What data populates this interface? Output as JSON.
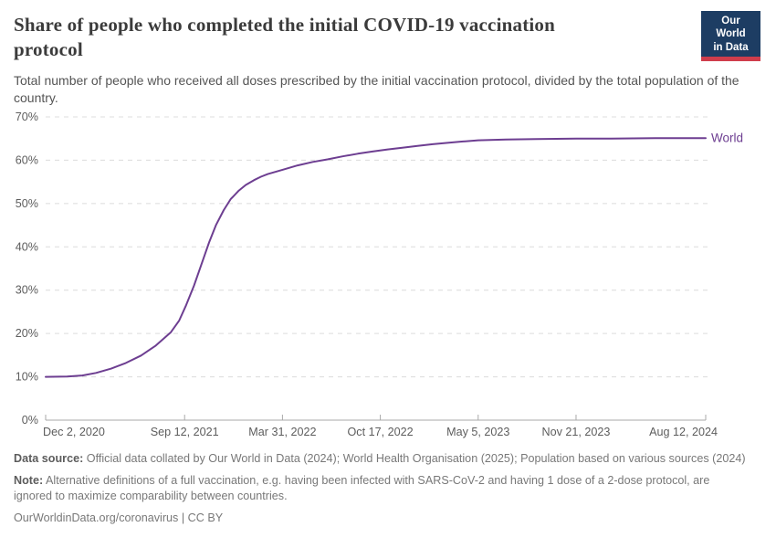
{
  "header": {
    "title": "Share of people who completed the initial COVID-19 vaccination protocol",
    "subtitle": "Total number of people who received all doses prescribed by the initial vaccination protocol, divided by the total population of the country.",
    "logo": {
      "line1": "Our World",
      "line2": "in Data",
      "bg_color": "#1d3d63",
      "accent_color": "#cf3d4c"
    }
  },
  "chart_data": {
    "type": "line",
    "title": "Share of people who completed the initial COVID-19 vaccination protocol",
    "xlabel": "",
    "ylabel": "",
    "ylim": [
      0,
      70
    ],
    "grid": "horizontal-dashed",
    "legend_position": "end-of-line-label",
    "x_range": [
      "2020-12-02",
      "2024-08-12"
    ],
    "yticks": [
      {
        "value": 0,
        "label": "0%"
      },
      {
        "value": 10,
        "label": "10%"
      },
      {
        "value": 20,
        "label": "20%"
      },
      {
        "value": 30,
        "label": "30%"
      },
      {
        "value": 40,
        "label": "40%"
      },
      {
        "value": 50,
        "label": "50%"
      },
      {
        "value": 60,
        "label": "60%"
      },
      {
        "value": 70,
        "label": "70%"
      }
    ],
    "xticks": [
      {
        "date": "2020-12-02",
        "label": "Dec 2, 2020"
      },
      {
        "date": "2021-09-12",
        "label": "Sep 12, 2021"
      },
      {
        "date": "2022-03-31",
        "label": "Mar 31, 2022"
      },
      {
        "date": "2022-10-17",
        "label": "Oct 17, 2022"
      },
      {
        "date": "2023-05-05",
        "label": "May 5, 2023"
      },
      {
        "date": "2023-11-21",
        "label": "Nov 21, 2023"
      },
      {
        "date": "2024-08-12",
        "label": "Aug 12, 2024"
      }
    ],
    "line_color": "#6d3e91",
    "series": [
      {
        "name": "World",
        "color": "#6d3e91",
        "points": [
          [
            "2020-12-02",
            10.0
          ],
          [
            "2021-01-15",
            10.05
          ],
          [
            "2021-02-15",
            10.3
          ],
          [
            "2021-03-15",
            10.9
          ],
          [
            "2021-04-15",
            11.9
          ],
          [
            "2021-05-15",
            13.2
          ],
          [
            "2021-06-15",
            14.9
          ],
          [
            "2021-07-15",
            17.2
          ],
          [
            "2021-08-15",
            20.3
          ],
          [
            "2021-09-01",
            23.0
          ],
          [
            "2021-09-15",
            26.5
          ],
          [
            "2021-10-01",
            31.0
          ],
          [
            "2021-10-15",
            35.5
          ],
          [
            "2021-11-01",
            41.0
          ],
          [
            "2021-11-15",
            45.0
          ],
          [
            "2021-12-01",
            48.5
          ],
          [
            "2021-12-15",
            51.0
          ],
          [
            "2022-01-01",
            53.0
          ],
          [
            "2022-01-15",
            54.3
          ],
          [
            "2022-02-01",
            55.4
          ],
          [
            "2022-02-15",
            56.2
          ],
          [
            "2022-03-01",
            56.8
          ],
          [
            "2022-03-31",
            57.8
          ],
          [
            "2022-05-01",
            58.8
          ],
          [
            "2022-06-01",
            59.6
          ],
          [
            "2022-07-01",
            60.2
          ],
          [
            "2022-08-01",
            60.9
          ],
          [
            "2022-09-01",
            61.5
          ],
          [
            "2022-10-01",
            62.0
          ],
          [
            "2022-11-01",
            62.5
          ],
          [
            "2022-12-01",
            62.9
          ],
          [
            "2023-01-01",
            63.3
          ],
          [
            "2023-02-01",
            63.7
          ],
          [
            "2023-03-01",
            64.0
          ],
          [
            "2023-04-01",
            64.3
          ],
          [
            "2023-05-05",
            64.6
          ],
          [
            "2023-07-01",
            64.8
          ],
          [
            "2023-09-01",
            64.9
          ],
          [
            "2023-11-21",
            65.0
          ],
          [
            "2024-02-01",
            65.0
          ],
          [
            "2024-05-01",
            65.1
          ],
          [
            "2024-08-12",
            65.1
          ]
        ]
      }
    ]
  },
  "footer": {
    "data_source_label": "Data source:",
    "data_source_text": " Official data collated by Our World in Data (2024); World Health Organisation (2025); Population based on various sources (2024)",
    "note_label": "Note:",
    "note_text": " Alternative definitions of a full vaccination, e.g. having been infected with SARS-CoV-2 and having 1 dose of a 2-dose protocol, are ignored to maximize comparability between countries.",
    "link": "OurWorldinData.org/coronavirus",
    "separator": " | ",
    "license": "CC BY"
  }
}
